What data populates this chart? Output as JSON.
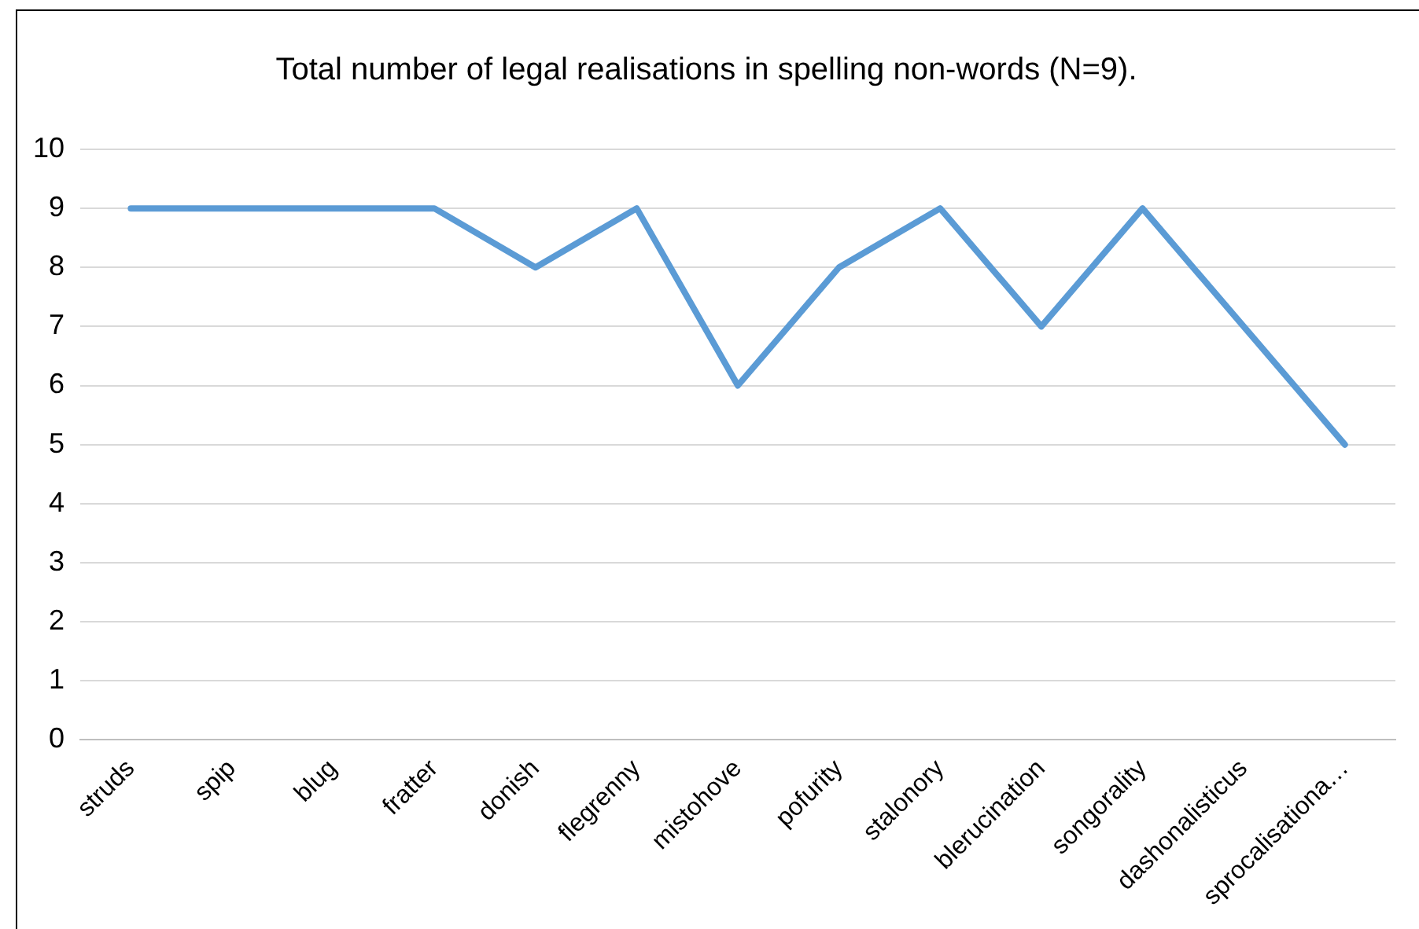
{
  "chart_data": {
    "type": "line",
    "title": "Total number of legal realisations in spelling non-words (N=9).",
    "categories": [
      "struds",
      "spip",
      "blug",
      "fratter",
      "donish",
      "flegrenny",
      "mistohove",
      "pofurity",
      "stalonory",
      "blerucination",
      "songorality",
      "dashonalisticus",
      "sprocalisationa…"
    ],
    "series": [
      {
        "color": "#5b9bd5",
        "values": [
          9,
          9,
          9,
          9,
          8,
          9,
          6,
          8,
          9,
          7,
          9,
          7,
          5
        ]
      }
    ],
    "ylim": [
      0,
      10
    ],
    "yticks": [
      0,
      1,
      2,
      3,
      4,
      5,
      6,
      7,
      8,
      9,
      10
    ],
    "grid": "y",
    "marker": "none",
    "line_style": "solid"
  }
}
